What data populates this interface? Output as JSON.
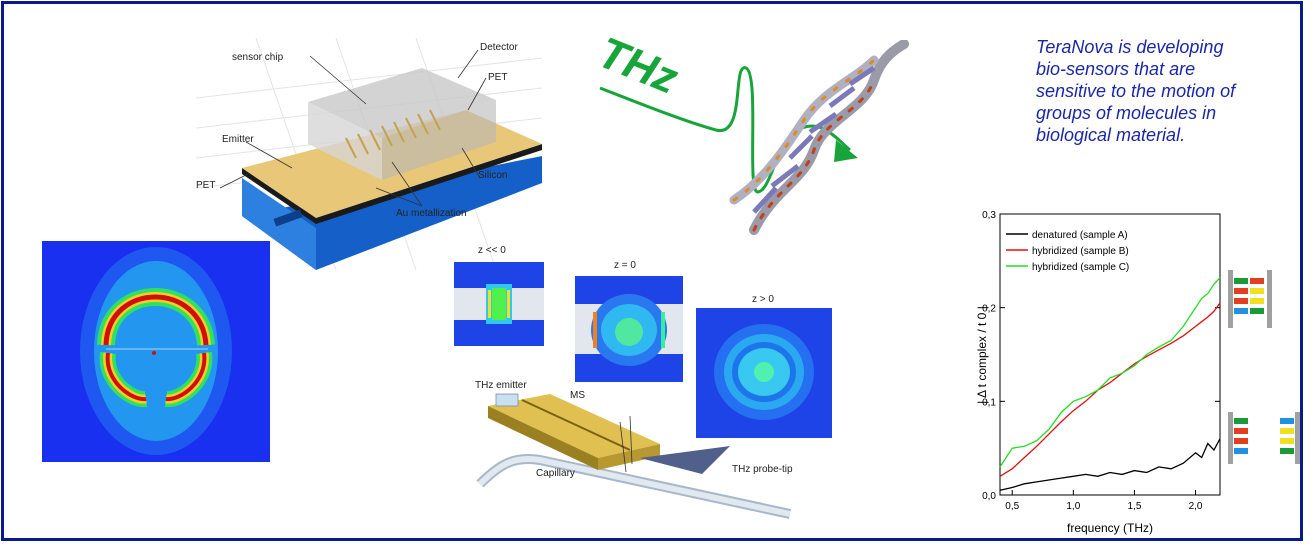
{
  "description": {
    "lines": [
      "TeraNova is developing",
      "bio-sensors that are",
      "sensitive to the motion of",
      "groups of molecules in",
      "biological material."
    ]
  },
  "thz_label": "THz",
  "sensor_chip": {
    "labels": {
      "sensor_chip": "sensor chip",
      "detector": "Detector",
      "pet_top": "PET",
      "emitter": "Emitter",
      "silicon": "Silicon",
      "pet_left": "PET",
      "au": "Au metallization"
    }
  },
  "field_panels": {
    "left": "z << 0",
    "middle": "z = 0",
    "right": "z > 0"
  },
  "probe_setup": {
    "emitter": "THz emitter",
    "ms": "MS",
    "capillary": "Capillary",
    "probe_tip": "THz probe-tip"
  },
  "colors": {
    "frame": "#0a1a8c",
    "text_blue": "#1a28a8",
    "thz_green": "#17a53a",
    "series_black": "#000000",
    "series_red": "#e01010",
    "series_green": "#22dd22"
  },
  "chart_data": {
    "type": "line",
    "xlabel": "frequency (THz)",
    "ylabel": "| Δ t complex / t 0 |",
    "xlim": [
      0.4,
      2.2
    ],
    "ylim": [
      0.0,
      0.3
    ],
    "xticks": [
      "0,5",
      "1,0",
      "1,5",
      "2,0"
    ],
    "yticks": [
      "0,0",
      "0,1",
      "0,2",
      "0,3"
    ],
    "legend_position": "top-left",
    "series": [
      {
        "name": "denatured (sample A)",
        "color": "#000000",
        "x": [
          0.4,
          0.5,
          0.6,
          0.7,
          0.8,
          0.9,
          1.0,
          1.1,
          1.2,
          1.3,
          1.4,
          1.5,
          1.6,
          1.7,
          1.8,
          1.9,
          2.0,
          2.05,
          2.1,
          2.15,
          2.2
        ],
        "y": [
          0.005,
          0.008,
          0.012,
          0.014,
          0.016,
          0.018,
          0.02,
          0.022,
          0.02,
          0.024,
          0.022,
          0.026,
          0.024,
          0.03,
          0.028,
          0.034,
          0.045,
          0.04,
          0.055,
          0.048,
          0.06
        ]
      },
      {
        "name": "hybridized (sample B)",
        "color": "#e01010",
        "x": [
          0.4,
          0.5,
          0.6,
          0.7,
          0.8,
          0.9,
          1.0,
          1.1,
          1.2,
          1.3,
          1.4,
          1.5,
          1.6,
          1.7,
          1.8,
          1.9,
          2.0,
          2.05,
          2.1,
          2.15,
          2.2
        ],
        "y": [
          0.02,
          0.028,
          0.04,
          0.052,
          0.065,
          0.078,
          0.09,
          0.1,
          0.112,
          0.12,
          0.13,
          0.14,
          0.148,
          0.155,
          0.162,
          0.17,
          0.18,
          0.185,
          0.19,
          0.196,
          0.205
        ]
      },
      {
        "name": "hybridized (sample C)",
        "color": "#22dd22",
        "x": [
          0.4,
          0.5,
          0.6,
          0.7,
          0.8,
          0.9,
          1.0,
          1.1,
          1.2,
          1.3,
          1.4,
          1.5,
          1.6,
          1.7,
          1.8,
          1.9,
          2.0,
          2.05,
          2.1,
          2.15,
          2.2
        ],
        "y": [
          0.03,
          0.05,
          0.052,
          0.058,
          0.07,
          0.088,
          0.1,
          0.105,
          0.112,
          0.125,
          0.13,
          0.138,
          0.15,
          0.158,
          0.165,
          0.18,
          0.2,
          0.21,
          0.215,
          0.225,
          0.232
        ]
      }
    ]
  }
}
